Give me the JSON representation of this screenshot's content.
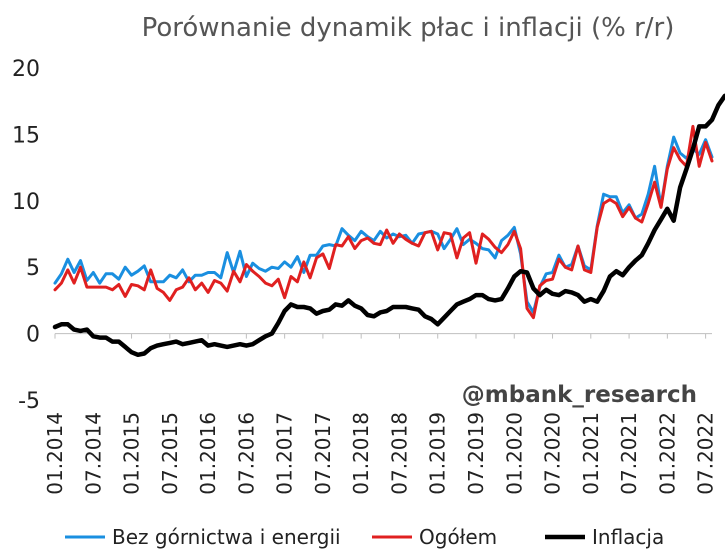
{
  "chart_data": {
    "type": "line",
    "title": "Porówn​anie dynamik płac i inflacji (% r/r)",
    "xlabel": "",
    "ylabel": "",
    "ylim": [
      -5,
      20
    ],
    "yticks": [
      -5,
      0,
      5,
      10,
      15,
      20
    ],
    "xtick_labels": [
      "01.2014",
      "07.2014",
      "01.2015",
      "07.2015",
      "01.2016",
      "07.2016",
      "01.2017",
      "07.2017",
      "01.2018",
      "07.2018",
      "01.2019",
      "07.2019",
      "01.2020",
      "07.2020",
      "01.2021",
      "07.2021",
      "01.2022",
      "07.2022"
    ],
    "x_start": "01.2014",
    "x_end": "12.2022",
    "grid": false,
    "legend_position": "bottom",
    "watermark": "@mbank_research",
    "series": [
      {
        "name": "Bez górnictwa i energii",
        "color": "#1a8fe0",
        "values": [
          3.8,
          4.5,
          5.6,
          4.6,
          5.5,
          4.0,
          4.6,
          3.8,
          4.5,
          4.5,
          4.1,
          5.0,
          4.4,
          4.7,
          5.1,
          3.9,
          3.9,
          3.9,
          4.4,
          4.2,
          4.8,
          3.9,
          4.4,
          4.4,
          4.6,
          4.6,
          4.2,
          6.1,
          4.6,
          6.2,
          4.3,
          5.3,
          4.9,
          4.7,
          5.0,
          4.9,
          5.4,
          5.0,
          5.8,
          4.6,
          5.9,
          5.9,
          6.6,
          6.7,
          6.6,
          7.9,
          7.4,
          7.0,
          7.7,
          7.3,
          7.0,
          7.7,
          7.2,
          7.5,
          7.3,
          7.4,
          6.8,
          7.5,
          7.6,
          7.7,
          7.5,
          6.4,
          7.1,
          7.9,
          6.7,
          7.1,
          6.8,
          6.4,
          6.3,
          5.7,
          7.0,
          7.4,
          8.0,
          6.0,
          2.4,
          1.6,
          3.5,
          4.5,
          4.6,
          5.9,
          5.0,
          5.2,
          6.6,
          5.1,
          4.8,
          8.1,
          10.5,
          10.3,
          10.3,
          9.1,
          9.7,
          8.7,
          9.0,
          10.5,
          12.6,
          9.6,
          12.6,
          14.8,
          13.6,
          13.2,
          13.9,
          13.5,
          14.6,
          13.3
        ]
      },
      {
        "name": "Ogółem",
        "color": "#e02020",
        "values": [
          3.3,
          3.8,
          4.8,
          3.8,
          5.0,
          3.5,
          3.5,
          3.5,
          3.5,
          3.3,
          3.7,
          2.8,
          3.7,
          3.6,
          3.3,
          4.8,
          3.4,
          3.1,
          2.5,
          3.3,
          3.5,
          4.2,
          3.3,
          3.8,
          3.1,
          4.0,
          3.8,
          3.2,
          4.7,
          3.9,
          5.2,
          4.7,
          4.3,
          3.8,
          3.6,
          4.1,
          2.7,
          4.3,
          3.9,
          5.4,
          4.2,
          5.7,
          6.0,
          4.9,
          6.7,
          6.6,
          7.3,
          6.4,
          7.0,
          7.2,
          6.8,
          6.7,
          7.8,
          6.8,
          7.5,
          7.1,
          6.8,
          6.6,
          7.6,
          7.7,
          6.3,
          7.6,
          7.5,
          5.7,
          7.2,
          7.6,
          5.3,
          7.5,
          7.1,
          6.5,
          6.1,
          6.7,
          7.7,
          6.4,
          1.9,
          1.2,
          3.6,
          4.0,
          4.1,
          5.6,
          5.0,
          4.8,
          6.6,
          4.8,
          4.6,
          8.0,
          9.8,
          10.1,
          9.8,
          8.8,
          9.5,
          8.7,
          8.4,
          9.8,
          11.4,
          9.5,
          12.4,
          14.0,
          13.1,
          12.6,
          15.6,
          12.6,
          14.4,
          13.0
        ]
      },
      {
        "name": "Inflacja",
        "color": "#000000",
        "values": [
          0.5,
          0.7,
          0.7,
          0.3,
          0.2,
          0.3,
          -0.2,
          -0.3,
          -0.3,
          -0.6,
          -0.6,
          -1.0,
          -1.4,
          -1.6,
          -1.5,
          -1.1,
          -0.9,
          -0.8,
          -0.7,
          -0.6,
          -0.8,
          -0.7,
          -0.6,
          -0.5,
          -0.9,
          -0.8,
          -0.9,
          -1.0,
          -0.9,
          -0.8,
          -0.9,
          -0.8,
          -0.5,
          -0.2,
          0.0,
          0.8,
          1.7,
          2.2,
          2.0,
          2.0,
          1.9,
          1.5,
          1.7,
          1.8,
          2.2,
          2.1,
          2.5,
          2.1,
          1.9,
          1.4,
          1.3,
          1.6,
          1.7,
          2.0,
          2.0,
          2.0,
          1.9,
          1.8,
          1.3,
          1.1,
          0.7,
          1.2,
          1.7,
          2.2,
          2.4,
          2.6,
          2.9,
          2.9,
          2.6,
          2.5,
          2.6,
          3.4,
          4.3,
          4.7,
          4.6,
          3.4,
          2.9,
          3.3,
          3.0,
          2.9,
          3.2,
          3.1,
          2.9,
          2.4,
          2.6,
          2.4,
          3.2,
          4.3,
          4.7,
          4.4,
          5.0,
          5.5,
          5.9,
          6.8,
          7.8,
          8.6,
          9.4,
          8.5,
          11.0,
          12.4,
          13.9,
          15.6,
          15.6,
          16.1,
          17.2,
          17.9
        ]
      }
    ]
  }
}
